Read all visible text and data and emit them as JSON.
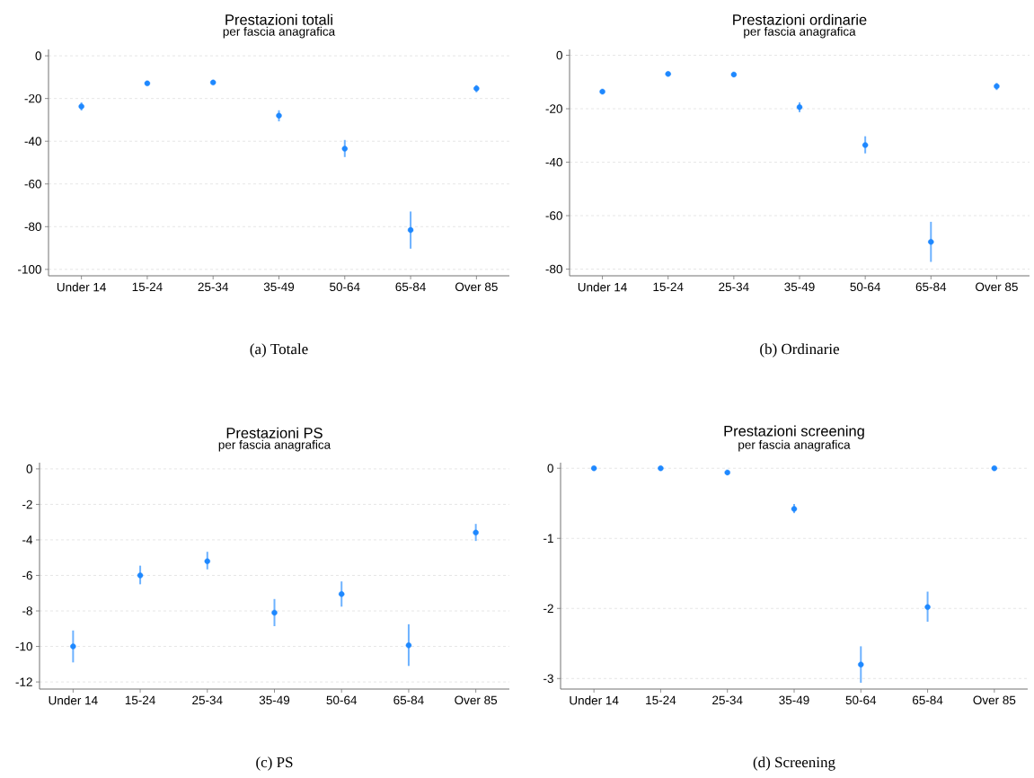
{
  "chart_data": [
    {
      "type": "scatter",
      "title": "Prestazioni totali",
      "subtitle": "per fascia anagrafica",
      "categories": [
        "Under 14",
        "15-24",
        "25-34",
        "35-49",
        "50-64",
        "65-84",
        "Over 85"
      ],
      "values": [
        -23.7,
        -12.9,
        -12.5,
        -28.0,
        -43.5,
        -81.6,
        -15.3
      ],
      "errors": [
        [
          -25.6,
          -21.8
        ],
        null,
        null,
        [
          -30.7,
          -25.5
        ],
        [
          -47.4,
          -39.4
        ],
        [
          -90.3,
          -72.9
        ],
        [
          -17.1,
          -13.7
        ]
      ],
      "color": "#1e88ff",
      "marker": "circle",
      "grid": "y",
      "ylim": [
        -103,
        3
      ],
      "yticks": [
        -100,
        -80,
        -60,
        -40,
        -20,
        0
      ],
      "annotations": [
        "(a) Totale"
      ]
    },
    {
      "type": "scatter",
      "title": "Prestazioni ordinarie",
      "subtitle": "per fascia anagrafica",
      "categories": [
        "Under 14",
        "15-24",
        "25-34",
        "35-49",
        "50-64",
        "65-84",
        "Over 85"
      ],
      "values": [
        -13.6,
        -7.0,
        -7.2,
        -19.4,
        -33.6,
        -69.8,
        -11.6
      ],
      "errors": [
        null,
        null,
        null,
        [
          -21.3,
          -17.6
        ],
        [
          -36.7,
          -30.3
        ],
        [
          -77.3,
          -62.3
        ],
        [
          -13.0,
          -10.4
        ]
      ],
      "color": "#1e88ff",
      "marker": "circle",
      "grid": "y",
      "ylim": [
        -82.5,
        2.2
      ],
      "yticks": [
        -80,
        -60,
        -40,
        -20,
        0
      ],
      "annotations": [
        "(b) Ordinarie"
      ]
    },
    {
      "type": "scatter",
      "title": "Prestazioni PS",
      "subtitle": "per fascia anagrafica",
      "categories": [
        "Under 14",
        "15-24",
        "25-34",
        "35-49",
        "50-64",
        "65-84",
        "Over 85"
      ],
      "values": [
        -10.0,
        -6.0,
        -5.2,
        -8.1,
        -7.05,
        -9.94,
        -3.59
      ],
      "errors": [
        [
          -10.9,
          -9.1
        ],
        [
          -6.5,
          -5.45
        ],
        [
          -5.66,
          -4.67
        ],
        [
          -8.86,
          -7.33
        ],
        [
          -7.76,
          -6.34
        ],
        [
          -11.1,
          -8.75
        ],
        [
          -4.06,
          -3.1
        ]
      ],
      "color": "#1e88ff",
      "marker": "circle",
      "grid": "y",
      "ylim": [
        -12.4,
        0.35
      ],
      "yticks": [
        -12,
        -10,
        -8,
        -6,
        -4,
        -2,
        0
      ],
      "annotations": [
        "(c) PS"
      ]
    },
    {
      "type": "scatter",
      "title": "Prestazioni screening",
      "subtitle": "per fascia anagrafica",
      "categories": [
        "Under 14",
        "15-24",
        "25-34",
        "35-49",
        "50-64",
        "65-84",
        "Over 85"
      ],
      "values": [
        0,
        0,
        -0.06,
        -0.58,
        -2.8,
        -1.98,
        0
      ],
      "errors": [
        null,
        null,
        null,
        [
          -0.64,
          -0.51
        ],
        [
          -3.06,
          -2.54
        ],
        [
          -2.19,
          -1.76
        ],
        null
      ],
      "color": "#1e88ff",
      "marker": "circle",
      "grid": "y",
      "ylim": [
        -3.15,
        0.08
      ],
      "yticks": [
        -3,
        -2,
        -1,
        0
      ],
      "annotations": [
        "(d) Screening"
      ]
    }
  ]
}
